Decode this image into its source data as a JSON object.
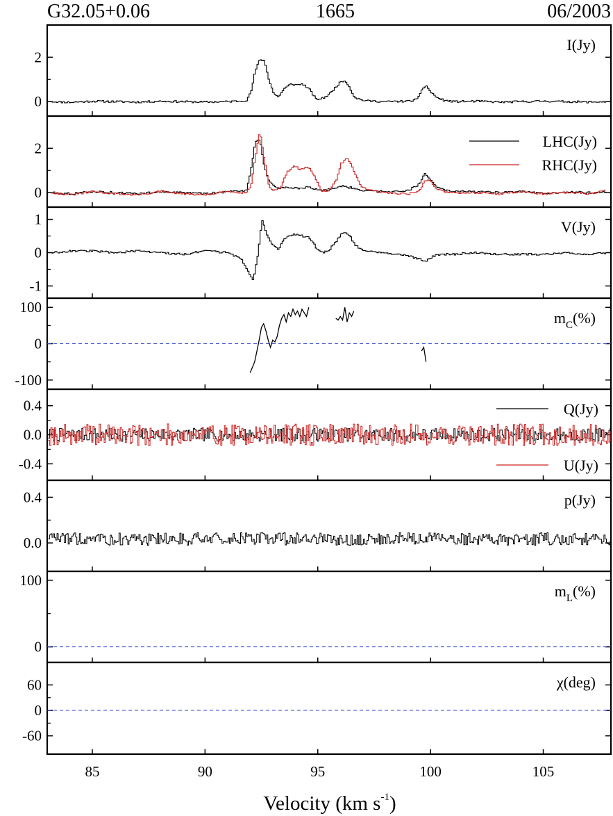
{
  "header": {
    "source": "G32.05+0.06",
    "frequency": "1665",
    "epoch": "06/2003"
  },
  "colors": {
    "primary": "#000000",
    "secondary": "#cc2222",
    "zero_line": "#3344cc"
  },
  "chart_data": {
    "type": "line",
    "style": "step",
    "xlabel": "Velocity (km s",
    "xlabel_sup": "-1",
    "xlabel_close": ")",
    "xlim": [
      83,
      108
    ],
    "xticks": [
      85,
      90,
      95,
      100,
      105
    ],
    "xtick_labels": [
      "85",
      "90",
      "95",
      "100",
      "105"
    ],
    "panels": [
      {
        "id": "I",
        "label": "I(Jy)",
        "ylim": [
          -0.4,
          3.2
        ],
        "yticks": [
          0,
          2
        ],
        "ytick_labels": [
          "0",
          "2"
        ],
        "series": [
          {
            "color": "black",
            "x": [
              83.2,
              84,
              85,
              86,
              87,
              88,
              89,
              90,
              91,
              91.8,
              92.0,
              92.2,
              92.4,
              92.6,
              92.8,
              93.0,
              93.2,
              93.5,
              93.8,
              94.0,
              94.3,
              94.6,
              94.9,
              95.2,
              95.5,
              95.8,
              96.0,
              96.2,
              96.4,
              96.6,
              96.9,
              97.2,
              98,
              99,
              99.4,
              99.6,
              99.8,
              100.0,
              100.3,
              100.6,
              101,
              102,
              103,
              104,
              105,
              106,
              107,
              107.8
            ],
            "values": [
              0.0,
              -0.03,
              0.02,
              0.0,
              -0.02,
              0.02,
              0.0,
              -0.02,
              0.0,
              0.05,
              0.4,
              1.4,
              1.9,
              1.85,
              1.0,
              0.4,
              0.2,
              0.6,
              0.8,
              0.75,
              0.8,
              0.55,
              0.1,
              0.15,
              0.35,
              0.7,
              0.9,
              0.95,
              0.6,
              0.2,
              0.08,
              0.03,
              0.0,
              0.02,
              0.1,
              0.6,
              0.7,
              0.4,
              0.15,
              0.05,
              0.0,
              0.02,
              -0.02,
              0.0,
              0.02,
              0.0,
              -0.02,
              0.0
            ]
          }
        ]
      },
      {
        "id": "LR",
        "ylim": [
          -0.4,
          3.2
        ],
        "yticks": [
          0,
          2
        ],
        "ytick_labels": [
          "0",
          "2"
        ],
        "legend": "right",
        "series": [
          {
            "name": "LHC(Jy)",
            "color": "black",
            "x": [
              83.2,
              84,
              85,
              86,
              87,
              88,
              89,
              90,
              91,
              91.8,
              92.0,
              92.2,
              92.4,
              92.6,
              92.8,
              93.0,
              93.3,
              93.6,
              94,
              94.5,
              95,
              95.5,
              96,
              96.3,
              96.6,
              97,
              98,
              99,
              99.5,
              99.7,
              99.9,
              100.2,
              100.6,
              101,
              102,
              103,
              104,
              105,
              106,
              107,
              107.8
            ],
            "values": [
              0.0,
              -0.05,
              0.05,
              0.0,
              -0.05,
              0.05,
              0.0,
              -0.05,
              0.05,
              0.1,
              1.0,
              2.3,
              2.4,
              1.2,
              0.5,
              0.3,
              0.2,
              0.25,
              0.2,
              0.25,
              0.1,
              0.15,
              0.3,
              0.25,
              0.2,
              0.1,
              0.05,
              0.1,
              0.4,
              0.85,
              0.7,
              0.3,
              0.1,
              0.05,
              0.05,
              0.0,
              0.05,
              -0.05,
              0.05,
              0.0,
              0.05
            ]
          },
          {
            "name": "RHC(Jy)",
            "color": "red",
            "x": [
              83.2,
              84,
              85,
              86,
              87,
              88,
              89,
              90,
              91,
              91.8,
              92.0,
              92.2,
              92.4,
              92.6,
              92.8,
              93.0,
              93.3,
              93.6,
              93.9,
              94.2,
              94.5,
              94.8,
              95.1,
              95.5,
              95.8,
              96.0,
              96.3,
              96.6,
              96.9,
              97.2,
              98,
              99,
              99.5,
              99.7,
              99.9,
              100.2,
              100.6,
              101,
              102,
              103,
              104,
              105,
              106,
              107,
              107.8
            ],
            "values": [
              0.0,
              -0.1,
              0.05,
              -0.05,
              -0.1,
              0.05,
              -0.05,
              -0.1,
              0.05,
              0.0,
              0.3,
              1.6,
              2.8,
              1.5,
              0.3,
              0.1,
              0.2,
              0.9,
              1.2,
              1.05,
              1.2,
              0.8,
              0.1,
              0.1,
              0.6,
              1.3,
              1.55,
              0.9,
              0.3,
              0.1,
              0.0,
              -0.05,
              0.1,
              0.5,
              0.6,
              0.2,
              0.05,
              0.0,
              0.0,
              -0.05,
              0.05,
              -0.05,
              0.0,
              -0.05,
              0.1
            ]
          }
        ]
      },
      {
        "id": "V",
        "label": "V(Jy)",
        "ylim": [
          -1.2,
          1.2
        ],
        "yticks": [
          1,
          0,
          -1
        ],
        "ytick_labels": [
          "1",
          "0",
          "-1"
        ],
        "series": [
          {
            "color": "black",
            "x": [
              83.2,
              84,
              85,
              86,
              87,
              88,
              89,
              90,
              91,
              91.6,
              91.9,
              92.1,
              92.3,
              92.5,
              92.7,
              92.9,
              93.2,
              93.5,
              93.8,
              94.0,
              94.3,
              94.6,
              94.9,
              95.2,
              95.5,
              95.8,
              96.0,
              96.2,
              96.4,
              96.6,
              96.9,
              97.2,
              98,
              99,
              99.5,
              99.8,
              100.1,
              100.5,
              101,
              102,
              103,
              104,
              105,
              106,
              107,
              107.8
            ],
            "values": [
              0.0,
              0.05,
              0.05,
              0.0,
              0.05,
              0.0,
              -0.05,
              0.05,
              0.0,
              -0.2,
              -0.6,
              -0.85,
              -0.1,
              1.0,
              0.55,
              0.3,
              0.1,
              0.4,
              0.55,
              0.55,
              0.5,
              0.45,
              0.15,
              0.0,
              0.1,
              0.35,
              0.55,
              0.6,
              0.5,
              0.25,
              0.1,
              0.05,
              0.0,
              -0.1,
              -0.2,
              -0.25,
              -0.1,
              -0.05,
              -0.05,
              0.0,
              -0.05,
              -0.05,
              -0.05,
              0.0,
              -0.05,
              0.0
            ]
          }
        ]
      },
      {
        "id": "mC",
        "label": "m",
        "label_sub": "C",
        "label_unit": "(%)",
        "ylim": [
          -110,
          110
        ],
        "yticks": [
          100,
          0,
          -100
        ],
        "ytick_labels": [
          "100",
          "0",
          "-100"
        ],
        "zero_line": true,
        "series": [
          {
            "color": "black",
            "style": "line",
            "segments": [
              {
                "x": [
                  92.0,
                  92.1,
                  92.2,
                  92.3,
                  92.4,
                  92.5,
                  92.6,
                  92.7,
                  92.8,
                  92.9,
                  93.0,
                  93.1,
                  93.2,
                  93.3,
                  93.4,
                  93.5,
                  93.6,
                  93.7,
                  93.8,
                  93.9,
                  94.0,
                  94.1,
                  94.2,
                  94.3,
                  94.4,
                  94.5,
                  94.6
                ],
                "values": [
                  -80,
                  -65,
                  -50,
                  -20,
                  10,
                  45,
                  55,
                  35,
                  10,
                  -10,
                  10,
                  5,
                  20,
                  50,
                  70,
                  80,
                  60,
                  85,
                  75,
                  95,
                  80,
                  90,
                  75,
                  95,
                  85,
                  75,
                  100
                ]
              },
              {
                "x": [
                  95.8,
                  95.9,
                  96.0,
                  96.1,
                  96.2,
                  96.3,
                  96.4,
                  96.5,
                  96.6
                ],
                "values": [
                  70,
                  65,
                  75,
                  65,
                  100,
                  60,
                  85,
                  75,
                  90
                ]
              },
              {
                "x": [
                  99.6,
                  99.7,
                  99.8
                ],
                "values": [
                  -20,
                  -10,
                  -50
                ]
              }
            ]
          }
        ]
      },
      {
        "id": "QU",
        "ylim": [
          -0.55,
          0.55
        ],
        "yticks": [
          0.4,
          0.0,
          -0.4
        ],
        "ytick_labels": [
          "0.4",
          "0.0",
          "-0.4"
        ],
        "legend": "split",
        "series": [
          {
            "name": "Q(Jy)",
            "color": "black",
            "noise": {
              "seed": 7,
              "amplitude": 0.09
            }
          },
          {
            "name": "U(Jy)",
            "color": "red",
            "noise": {
              "seed": 19,
              "amplitude": 0.15
            }
          }
        ]
      },
      {
        "id": "p",
        "label": "p(Jy)",
        "ylim": [
          -0.2,
          0.5
        ],
        "yticks": [
          0.4,
          0.0
        ],
        "ytick_labels": [
          "0.4",
          "0.0"
        ],
        "series": [
          {
            "color": "black",
            "noise": {
              "seed": 31,
              "amplitude": 0.1,
              "positive": true
            }
          }
        ]
      },
      {
        "id": "mL",
        "label": "m",
        "label_sub": "L",
        "label_unit": "(%)",
        "ylim": [
          -15,
          105
        ],
        "yticks": [
          100,
          0
        ],
        "ytick_labels": [
          "100",
          "0"
        ],
        "zero_line": true,
        "series": []
      },
      {
        "id": "chi",
        "label": "χ(deg)",
        "ylim": [
          -90,
          100
        ],
        "yticks": [
          60,
          0,
          -60
        ],
        "ytick_labels": [
          "60",
          "0",
          "-60"
        ],
        "zero_line": true,
        "series": []
      }
    ]
  }
}
